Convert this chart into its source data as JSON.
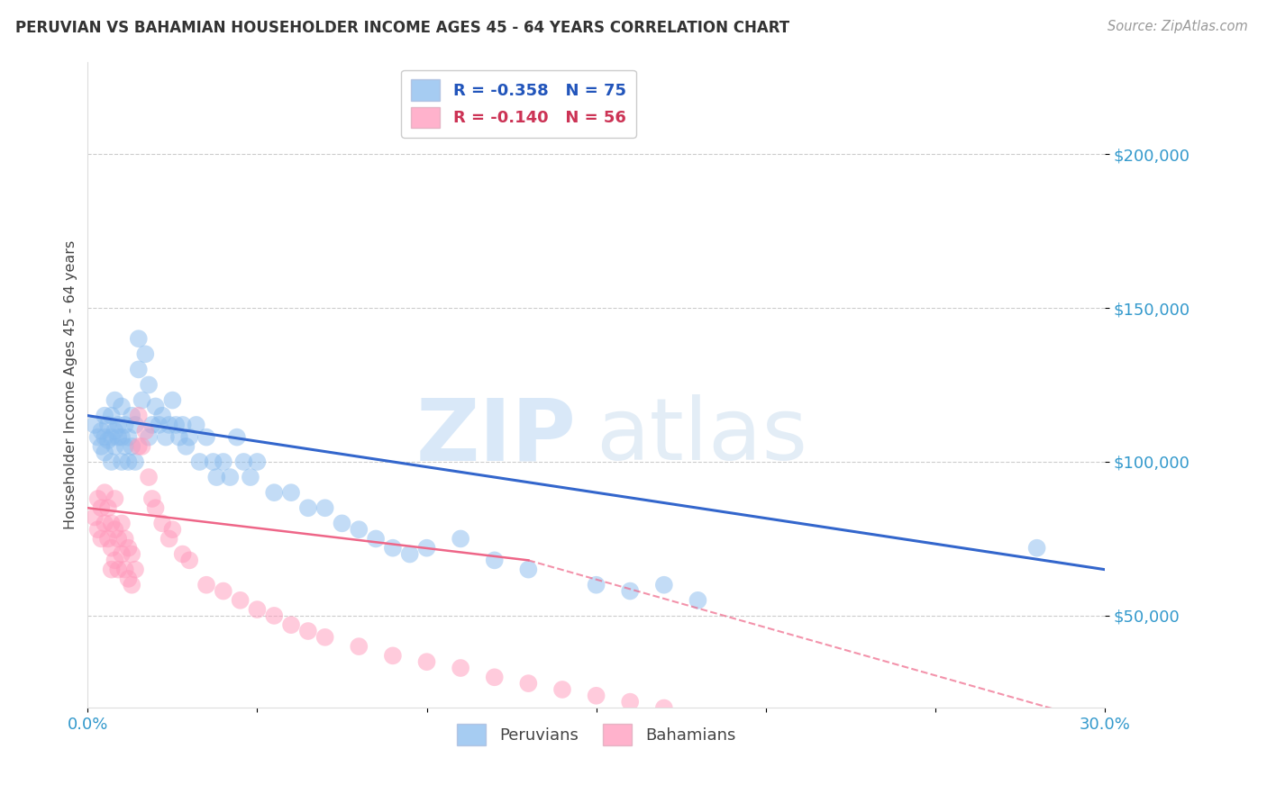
{
  "title": "PERUVIAN VS BAHAMIAN HOUSEHOLDER INCOME AGES 45 - 64 YEARS CORRELATION CHART",
  "source": "Source: ZipAtlas.com",
  "ylabel": "Householder Income Ages 45 - 64 years",
  "xlim": [
    0.0,
    0.3
  ],
  "ylim": [
    20000,
    230000
  ],
  "yticks": [
    50000,
    100000,
    150000,
    200000
  ],
  "ytick_labels": [
    "$50,000",
    "$100,000",
    "$150,000",
    "$200,000"
  ],
  "background_color": "#ffffff",
  "blue_color": "#88bbee",
  "pink_color": "#ff99bb",
  "blue_line_color": "#3366cc",
  "pink_line_color": "#ee6688",
  "legend_r_blue": "R = -0.358",
  "legend_n_blue": "N = 75",
  "legend_r_pink": "R = -0.140",
  "legend_n_pink": "N = 56",
  "peruvian_label": "Peruvians",
  "bahamian_label": "Bahamians",
  "blue_x": [
    0.002,
    0.003,
    0.004,
    0.004,
    0.005,
    0.005,
    0.005,
    0.006,
    0.006,
    0.007,
    0.007,
    0.007,
    0.008,
    0.008,
    0.008,
    0.009,
    0.009,
    0.01,
    0.01,
    0.01,
    0.011,
    0.011,
    0.012,
    0.012,
    0.013,
    0.013,
    0.014,
    0.014,
    0.015,
    0.015,
    0.016,
    0.017,
    0.018,
    0.018,
    0.019,
    0.02,
    0.021,
    0.022,
    0.023,
    0.024,
    0.025,
    0.026,
    0.027,
    0.028,
    0.029,
    0.03,
    0.032,
    0.033,
    0.035,
    0.037,
    0.038,
    0.04,
    0.042,
    0.044,
    0.046,
    0.048,
    0.05,
    0.055,
    0.06,
    0.065,
    0.07,
    0.075,
    0.08,
    0.085,
    0.09,
    0.095,
    0.1,
    0.11,
    0.12,
    0.13,
    0.15,
    0.16,
    0.17,
    0.18,
    0.28
  ],
  "blue_y": [
    112000,
    108000,
    110000,
    105000,
    115000,
    108000,
    103000,
    112000,
    107000,
    108000,
    115000,
    100000,
    120000,
    110000,
    105000,
    112000,
    108000,
    118000,
    108000,
    100000,
    112000,
    105000,
    108000,
    100000,
    115000,
    105000,
    112000,
    100000,
    140000,
    130000,
    120000,
    135000,
    125000,
    108000,
    112000,
    118000,
    112000,
    115000,
    108000,
    112000,
    120000,
    112000,
    108000,
    112000,
    105000,
    108000,
    112000,
    100000,
    108000,
    100000,
    95000,
    100000,
    95000,
    108000,
    100000,
    95000,
    100000,
    90000,
    90000,
    85000,
    85000,
    80000,
    78000,
    75000,
    72000,
    70000,
    72000,
    75000,
    68000,
    65000,
    60000,
    58000,
    60000,
    55000,
    72000
  ],
  "pink_x": [
    0.002,
    0.003,
    0.003,
    0.004,
    0.004,
    0.005,
    0.005,
    0.006,
    0.006,
    0.007,
    0.007,
    0.007,
    0.008,
    0.008,
    0.008,
    0.009,
    0.009,
    0.01,
    0.01,
    0.011,
    0.011,
    0.012,
    0.012,
    0.013,
    0.013,
    0.014,
    0.015,
    0.015,
    0.016,
    0.017,
    0.018,
    0.019,
    0.02,
    0.022,
    0.024,
    0.025,
    0.028,
    0.03,
    0.035,
    0.04,
    0.045,
    0.05,
    0.055,
    0.06,
    0.065,
    0.07,
    0.08,
    0.09,
    0.1,
    0.11,
    0.12,
    0.13,
    0.14,
    0.15,
    0.16,
    0.17
  ],
  "pink_y": [
    82000,
    88000,
    78000,
    85000,
    75000,
    90000,
    80000,
    85000,
    75000,
    80000,
    72000,
    65000,
    88000,
    78000,
    68000,
    75000,
    65000,
    80000,
    70000,
    75000,
    65000,
    72000,
    62000,
    70000,
    60000,
    65000,
    105000,
    115000,
    105000,
    110000,
    95000,
    88000,
    85000,
    80000,
    75000,
    78000,
    70000,
    68000,
    60000,
    58000,
    55000,
    52000,
    50000,
    47000,
    45000,
    43000,
    40000,
    37000,
    35000,
    33000,
    30000,
    28000,
    26000,
    24000,
    22000,
    20000
  ]
}
